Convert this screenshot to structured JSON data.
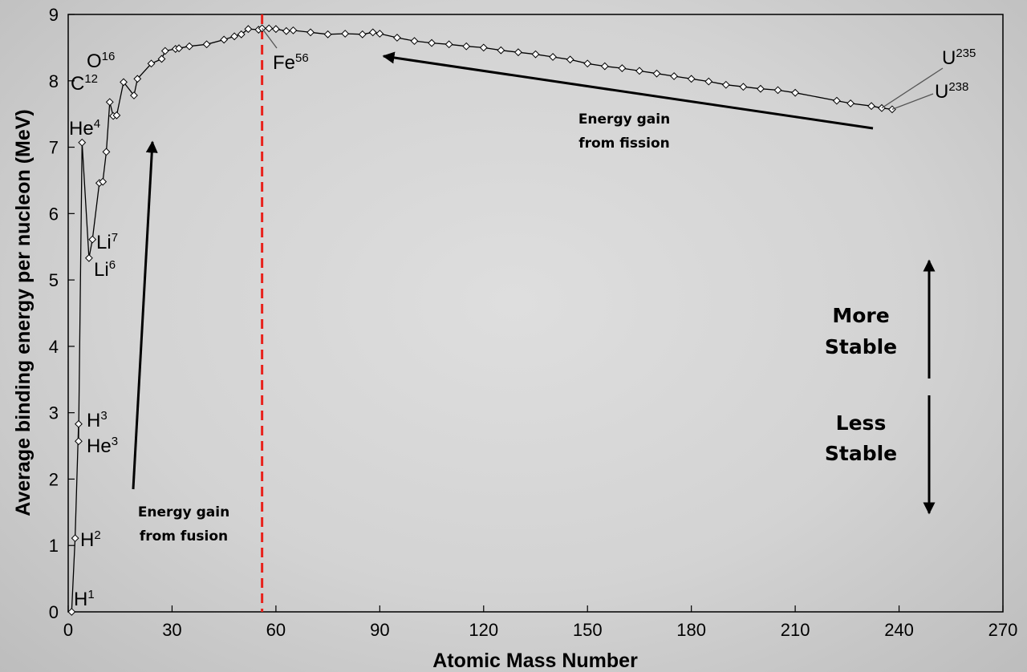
{
  "chart_data": {
    "type": "line",
    "xlabel": "Atomic Mass Number",
    "ylabel": "Average binding energy per nucleon (MeV)",
    "xlim": [
      0,
      270
    ],
    "ylim": [
      0,
      9
    ],
    "xticks": [
      "0",
      "30",
      "60",
      "90",
      "120",
      "150",
      "180",
      "210",
      "240",
      "270"
    ],
    "yticks": [
      "0",
      "1",
      "2",
      "3",
      "4",
      "5",
      "6",
      "7",
      "8",
      "9"
    ],
    "grid": false,
    "series": [
      {
        "marker": "diamond",
        "x": [
          1,
          2,
          3,
          3,
          4,
          6,
          7,
          9,
          10,
          11,
          12,
          13,
          14,
          16,
          19,
          20,
          24,
          27,
          28,
          31,
          32,
          35,
          40,
          45,
          48,
          50,
          52,
          55,
          56,
          58,
          60,
          63,
          65,
          70,
          75,
          80,
          85,
          88,
          90,
          95,
          100,
          105,
          110,
          115,
          120,
          125,
          130,
          135,
          140,
          145,
          150,
          155,
          160,
          165,
          170,
          175,
          180,
          185,
          190,
          195,
          200,
          205,
          210,
          222,
          226,
          232,
          235,
          238
        ],
        "y": [
          0.0,
          1.11,
          2.83,
          2.57,
          7.07,
          5.33,
          5.61,
          6.46,
          6.48,
          6.93,
          7.68,
          7.47,
          7.48,
          7.98,
          7.78,
          8.03,
          8.26,
          8.33,
          8.45,
          8.48,
          8.49,
          8.52,
          8.55,
          8.62,
          8.67,
          8.7,
          8.78,
          8.77,
          8.79,
          8.79,
          8.78,
          8.75,
          8.76,
          8.73,
          8.7,
          8.71,
          8.7,
          8.73,
          8.71,
          8.65,
          8.6,
          8.57,
          8.55,
          8.52,
          8.5,
          8.46,
          8.43,
          8.4,
          8.36,
          8.32,
          8.26,
          8.22,
          8.19,
          8.15,
          8.11,
          8.07,
          8.03,
          7.99,
          7.94,
          7.91,
          7.88,
          7.86,
          7.82,
          7.7,
          7.66,
          7.62,
          7.59,
          7.57
        ]
      }
    ],
    "point_labels": [
      {
        "base": "H",
        "sup": "1"
      },
      {
        "base": "H",
        "sup": "2"
      },
      {
        "base": "H",
        "sup": "3"
      },
      {
        "base": "He",
        "sup": "3"
      },
      {
        "base": "He",
        "sup": "4"
      },
      {
        "base": "Li",
        "sup": "7"
      },
      {
        "base": "Li",
        "sup": "6"
      },
      {
        "base": "C",
        "sup": "12"
      },
      {
        "base": "O",
        "sup": "16"
      },
      {
        "base": "Fe",
        "sup": "56"
      },
      {
        "base": "U",
        "sup": "235"
      },
      {
        "base": "U",
        "sup": "238"
      }
    ],
    "reference_line": {
      "x": 56,
      "color": "#e8211b",
      "style": "dashed"
    },
    "annotations": {
      "fusion": [
        "Energy gain",
        "from fusion"
      ],
      "fission": [
        "Energy gain",
        "from fission"
      ],
      "more_stable": [
        "More",
        "Stable"
      ],
      "less_stable": [
        "Less",
        "Stable"
      ]
    }
  }
}
